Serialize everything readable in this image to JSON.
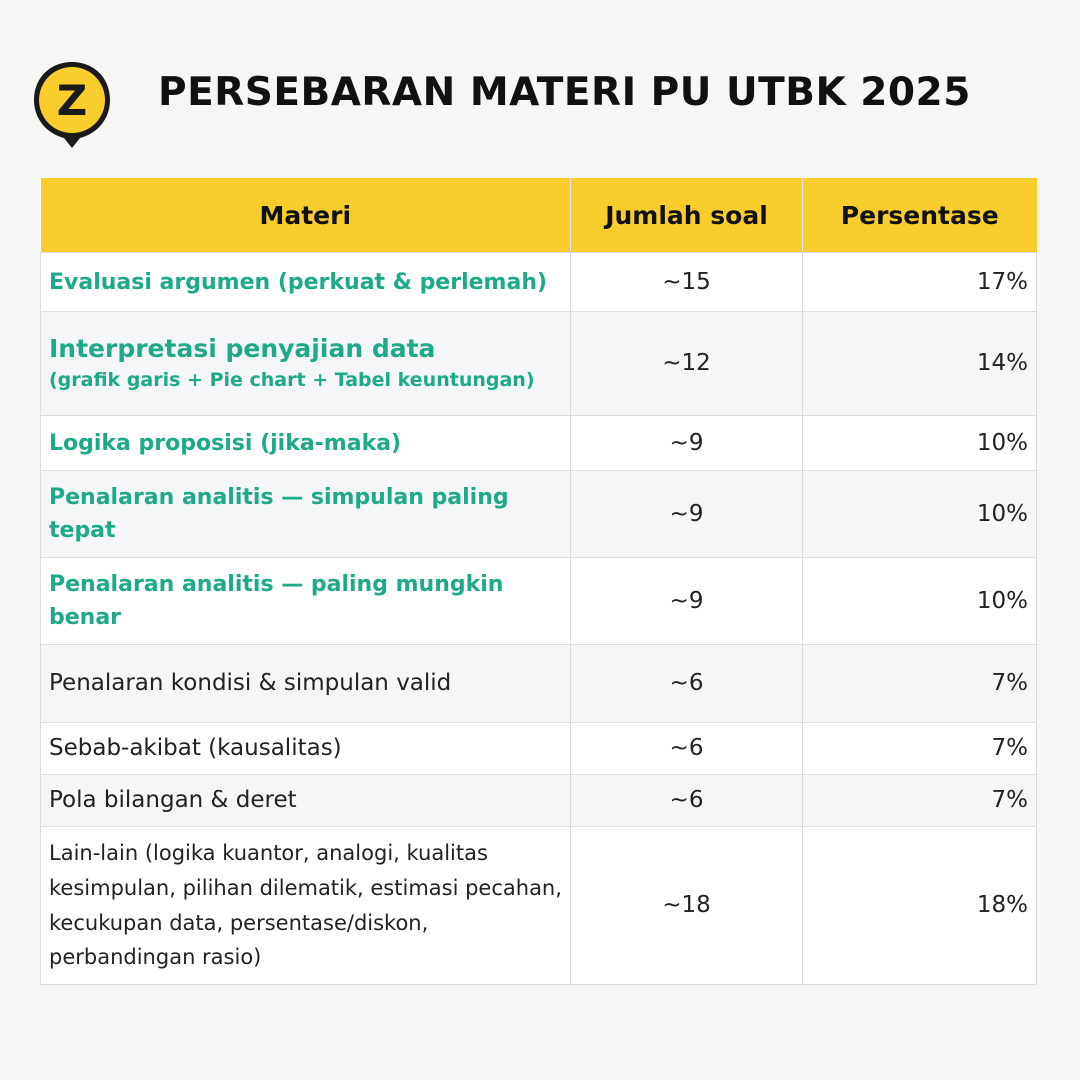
{
  "header": {
    "title": "PERSEBARAN MATERI PU UTBK 2025",
    "logo_letter": "Z",
    "logo_color": "#f9cd2b"
  },
  "table": {
    "columns": [
      "Materi",
      "Jumlah soal",
      "Persentase"
    ],
    "header_color": "#f9cd2b",
    "highlight_color": "#1ea98a",
    "rows": [
      {
        "materi": "Evaluasi argumen (perkuat & perlemah)",
        "jumlah": "~15",
        "persen": "17%"
      },
      {
        "materi": "Interpretasi penyajian data",
        "materi_sub": "(grafik garis + Pie chart + Tabel keuntungan)",
        "jumlah": "~12",
        "persen": "14%"
      },
      {
        "materi": "Logika proposisi (jika-maka)",
        "jumlah": "~9",
        "persen": "10%"
      },
      {
        "materi": "Penalaran analitis — simpulan paling tepat",
        "jumlah": "~9",
        "persen": "10%"
      },
      {
        "materi": "Penalaran analitis — paling mungkin benar",
        "jumlah": "~9",
        "persen": "10%"
      },
      {
        "materi": "Penalaran kondisi & simpulan valid",
        "jumlah": "~6",
        "persen": "7%"
      },
      {
        "materi": "Sebab-akibat (kausalitas)",
        "jumlah": "~6",
        "persen": "7%"
      },
      {
        "materi": "Pola bilangan & deret",
        "jumlah": "~6",
        "persen": "7%"
      },
      {
        "materi": "Lain-lain (logika kuantor, analogi, kualitas kesimpulan, pilihan dilematik, estimasi pecahan, kecukupan data, persentase/diskon, perbandingan rasio)",
        "jumlah": "~18",
        "persen": "18%"
      }
    ]
  }
}
